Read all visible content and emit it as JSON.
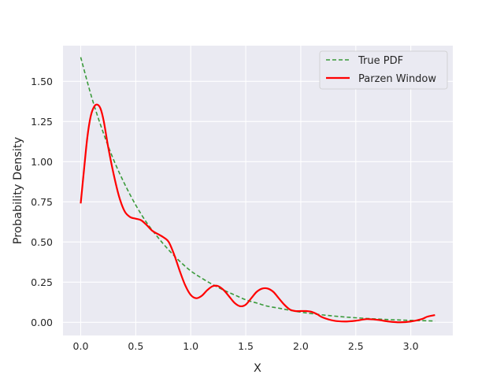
{
  "chart_data": {
    "type": "line",
    "xlabel": "X",
    "ylabel": "Probability Density",
    "xlim": [
      -0.161,
      3.382
    ],
    "ylim": [
      -0.082,
      1.722
    ],
    "xticks": [
      0.0,
      0.5,
      1.0,
      1.5,
      2.0,
      2.5,
      3.0
    ],
    "xtick_labels": [
      "0.0",
      "0.5",
      "1.0",
      "1.5",
      "2.0",
      "2.5",
      "3.0"
    ],
    "yticks": [
      0.0,
      0.25,
      0.5,
      0.75,
      1.0,
      1.25,
      1.5
    ],
    "ytick_labels": [
      "0.00",
      "0.25",
      "0.50",
      "0.75",
      "1.00",
      "1.25",
      "1.50"
    ],
    "grid": true,
    "legend_position": "top-right",
    "series": [
      {
        "name": "True PDF",
        "style": "dashed",
        "color": "#3a9a3a",
        "x": [
          0.0,
          0.1,
          0.2,
          0.3,
          0.4,
          0.5,
          0.6,
          0.7,
          0.8,
          0.9,
          1.0,
          1.1,
          1.2,
          1.3,
          1.4,
          1.5,
          1.6,
          1.7,
          1.8,
          1.9,
          2.0,
          2.2,
          2.4,
          2.6,
          2.8,
          3.0,
          3.22
        ],
        "y": [
          1.65,
          1.4,
          1.19,
          1.01,
          0.86,
          0.73,
          0.62,
          0.53,
          0.45,
          0.38,
          0.32,
          0.275,
          0.235,
          0.2,
          0.17,
          0.14,
          0.12,
          0.1,
          0.088,
          0.075,
          0.063,
          0.046,
          0.033,
          0.024,
          0.017,
          0.012,
          0.008
        ]
      },
      {
        "name": "Parzen Window",
        "style": "solid",
        "color": "#ff0000",
        "x": [
          0.0,
          0.03,
          0.06,
          0.09,
          0.12,
          0.15,
          0.18,
          0.21,
          0.25,
          0.3,
          0.35,
          0.4,
          0.45,
          0.5,
          0.55,
          0.6,
          0.65,
          0.7,
          0.75,
          0.8,
          0.85,
          0.9,
          0.95,
          1.0,
          1.05,
          1.1,
          1.15,
          1.2,
          1.25,
          1.3,
          1.35,
          1.4,
          1.45,
          1.5,
          1.55,
          1.6,
          1.65,
          1.7,
          1.75,
          1.8,
          1.85,
          1.9,
          1.95,
          2.0,
          2.05,
          2.1,
          2.15,
          2.2,
          2.3,
          2.4,
          2.5,
          2.6,
          2.7,
          2.8,
          2.9,
          3.0,
          3.1,
          3.15,
          3.22
        ],
        "y": [
          0.74,
          0.95,
          1.15,
          1.28,
          1.34,
          1.355,
          1.33,
          1.25,
          1.09,
          0.92,
          0.78,
          0.69,
          0.655,
          0.645,
          0.635,
          0.605,
          0.57,
          0.55,
          0.53,
          0.5,
          0.42,
          0.32,
          0.23,
          0.17,
          0.15,
          0.165,
          0.2,
          0.225,
          0.225,
          0.2,
          0.16,
          0.12,
          0.1,
          0.11,
          0.15,
          0.19,
          0.21,
          0.21,
          0.19,
          0.15,
          0.11,
          0.08,
          0.07,
          0.07,
          0.07,
          0.065,
          0.05,
          0.03,
          0.01,
          0.005,
          0.01,
          0.02,
          0.015,
          0.005,
          0.0,
          0.005,
          0.02,
          0.035,
          0.045
        ]
      }
    ]
  }
}
